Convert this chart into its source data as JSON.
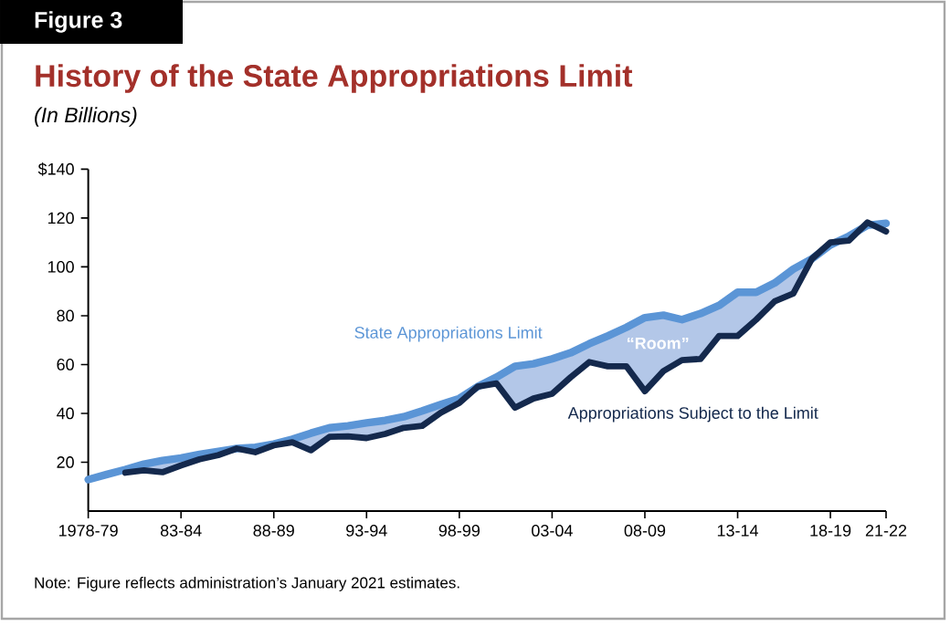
{
  "chart_data": {
    "type": "line",
    "title": "History of the State Appropriations Limit",
    "subtitle": "(In Billions)",
    "categories": [
      "1978-79",
      null,
      null,
      null,
      null,
      "83-84",
      null,
      null,
      null,
      null,
      "88-89",
      null,
      null,
      null,
      null,
      "93-94",
      null,
      null,
      null,
      null,
      "98-99",
      null,
      null,
      null,
      null,
      "03-04",
      null,
      null,
      null,
      null,
      "08-09",
      null,
      null,
      null,
      null,
      "13-14",
      null,
      null,
      null,
      null,
      "18-19",
      null,
      null,
      "21-22"
    ],
    "series": [
      {
        "name": "State Appropriations Limit",
        "color": "#5b95d6",
        "values": [
          12.9,
          15,
          17,
          19.2,
          20.7,
          21.7,
          23.2,
          24.4,
          25.6,
          26.1,
          27.4,
          29.4,
          31.9,
          34.1,
          34.9,
          36.1,
          37.1,
          38.6,
          41,
          43.6,
          46.1,
          51,
          54.8,
          59.3,
          60.3,
          62.3,
          64.8,
          68.5,
          71.7,
          75.2,
          79.2,
          80.2,
          78.4,
          80.9,
          84.2,
          89.6,
          89.6,
          93.4,
          99.1,
          103.3,
          109,
          112.6,
          117,
          117.8
        ]
      },
      {
        "name": "Appropriations Subject to the Limit",
        "color": "#14294d",
        "values": [
          null,
          null,
          15.7,
          16.7,
          15.9,
          18.7,
          21.2,
          22.9,
          25.6,
          24.1,
          26.9,
          28.2,
          24.9,
          30.4,
          30.6,
          29.9,
          31.6,
          34.1,
          34.9,
          40.3,
          44.3,
          51,
          52.3,
          42.3,
          46.1,
          48,
          54.8,
          61,
          59.3,
          59.3,
          49.1,
          57.3,
          61.8,
          62.3,
          71.7,
          71.7,
          78.4,
          85.9,
          89.1,
          103.3,
          110,
          110.8,
          118.2,
          114.5
        ]
      }
    ],
    "ylim": [
      0,
      140
    ],
    "yticks": [
      20,
      40,
      60,
      80,
      100,
      120,
      {
        "value": 140,
        "label": "$140"
      }
    ],
    "annotations": [
      "Figure 3",
      "“Room”",
      "Note: Figure reflects administration’s January 2021 estimates."
    ]
  }
}
